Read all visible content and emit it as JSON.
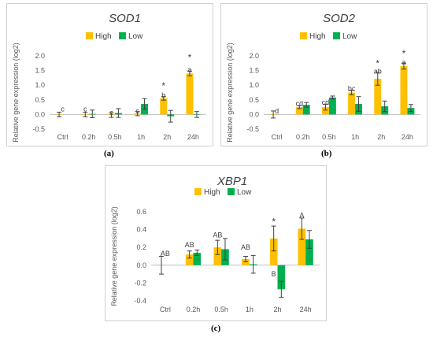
{
  "chart_data": [
    {
      "type": "bar",
      "title": "SOD1",
      "panel_label": "(a)",
      "ylabel": "Relative gene expression (log2)",
      "categories": [
        "Ctrl",
        "0.2h",
        "0.5h",
        "1h",
        "2h",
        "24h"
      ],
      "ylim": [
        -0.5,
        2.0
      ],
      "yticks": [
        "-0.5",
        "0.0",
        "0.5",
        "1.0",
        "1.5",
        "2.0"
      ],
      "ytick_values": [
        -0.5,
        0.0,
        0.5,
        1.0,
        1.5,
        2.0
      ],
      "legend_position": "top-right",
      "series": [
        {
          "name": "High",
          "color": "#ffc000",
          "values": [
            0.0,
            0.0,
            -0.02,
            0.03,
            0.55,
            1.4
          ],
          "errors": [
            0.08,
            0.08,
            0.08,
            0.07,
            0.06,
            0.08
          ]
        },
        {
          "name": "Low",
          "color": "#00b050",
          "values": [
            null,
            0.02,
            0.05,
            0.36,
            -0.06,
            0.0
          ],
          "errors": [
            null,
            0.13,
            0.15,
            0.18,
            0.2,
            0.1
          ]
        }
      ],
      "annotations": [
        {
          "category": 0,
          "text": "c",
          "y": 0.18
        },
        {
          "category": 1,
          "text": "c",
          "y": 0.18
        },
        {
          "category": 2,
          "text": "c",
          "y": 0.06
        },
        {
          "category": 3,
          "text": "c",
          "y": 0.12
        },
        {
          "category": 4,
          "text": "b",
          "y": 0.66
        },
        {
          "category": 4,
          "text": "*",
          "y": 0.95
        },
        {
          "category": 5,
          "text": "a",
          "y": 1.53
        },
        {
          "category": 5,
          "text": "*",
          "y": 1.92
        }
      ]
    },
    {
      "type": "bar",
      "title": "SOD2",
      "panel_label": "(b)",
      "ylabel": "Relative gene expression (log2)",
      "categories": [
        "Ctrl",
        "0.2h",
        "0.5h",
        "1h",
        "2h",
        "24h"
      ],
      "ylim": [
        -0.5,
        2.0
      ],
      "yticks": [
        "-0.5",
        "0.0",
        "0.5",
        "1.0",
        "1.5",
        "2.0"
      ],
      "ytick_values": [
        -0.5,
        0.0,
        0.5,
        1.0,
        1.5,
        2.0
      ],
      "legend_position": "top-right",
      "series": [
        {
          "name": "High",
          "color": "#ffc000",
          "values": [
            0.0,
            0.25,
            0.25,
            0.75,
            1.22,
            1.65
          ],
          "errors": [
            0.12,
            0.05,
            0.1,
            0.08,
            0.22,
            0.1
          ]
        },
        {
          "name": "Low",
          "color": "#00b050",
          "values": [
            null,
            0.33,
            0.58,
            0.36,
            0.28,
            0.22
          ],
          "errors": [
            null,
            0.08,
            0.05,
            0.25,
            0.18,
            0.12
          ]
        }
      ],
      "annotations": [
        {
          "category": 0,
          "text": "d",
          "y": 0.12
        },
        {
          "category": 1,
          "text": "cd",
          "y": 0.38
        },
        {
          "category": 2,
          "text": "cd",
          "y": 0.41
        },
        {
          "category": 3,
          "text": "bc",
          "y": 0.88
        },
        {
          "category": 4,
          "text": "ab",
          "y": 1.47
        },
        {
          "category": 4,
          "text": "*",
          "y": 1.72
        },
        {
          "category": 5,
          "text": "a",
          "y": 1.78
        },
        {
          "category": 5,
          "text": "*",
          "y": 2.06
        }
      ]
    },
    {
      "type": "bar",
      "title": "XBP1",
      "panel_label": "(c)",
      "ylabel": "Relative gene expression (log2)",
      "categories": [
        "Ctrl",
        "0.2h",
        "0.5h",
        "1h",
        "2h",
        "24h"
      ],
      "ylim": [
        -0.4,
        0.6
      ],
      "yticks": [
        "-0.4",
        "-0.2",
        "0.0",
        "0.2",
        "0.4",
        "0.6"
      ],
      "ytick_values": [
        -0.4,
        -0.2,
        0.0,
        0.2,
        0.4,
        0.6
      ],
      "legend_position": "top-right",
      "series": [
        {
          "name": "High",
          "color": "#ffc000",
          "values": [
            0.0,
            0.12,
            0.2,
            0.07,
            0.3,
            0.41
          ],
          "errors": [
            0.1,
            0.04,
            0.08,
            0.03,
            0.14,
            0.12
          ]
        },
        {
          "name": "Low",
          "color": "#00b050",
          "values": [
            null,
            0.14,
            0.18,
            0.01,
            -0.27,
            0.29
          ],
          "errors": [
            null,
            0.03,
            0.12,
            0.1,
            0.09,
            0.1
          ]
        }
      ],
      "annotations": [
        {
          "category": 0,
          "text": "AB",
          "y": 0.13
        },
        {
          "category": 1,
          "text": "AB",
          "y": 0.23
        },
        {
          "category": 2,
          "text": "AB",
          "y": 0.34
        },
        {
          "category": 3,
          "text": "AB",
          "y": 0.2
        },
        {
          "category": 4,
          "text": "*",
          "y": 0.48
        },
        {
          "category": 4,
          "text": "B",
          "y": -0.1
        },
        {
          "category": 5,
          "text": "A",
          "y": 0.56
        }
      ]
    }
  ]
}
